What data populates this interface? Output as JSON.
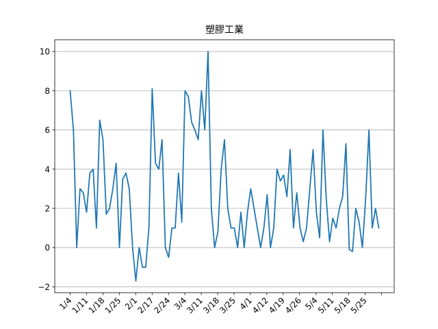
{
  "chart_data": {
    "type": "line",
    "title": "塑膠工業",
    "xlabel": "",
    "ylabel": "",
    "ylim": [
      -2.3,
      10.6
    ],
    "grid": "horizontal",
    "yticks": [
      -2,
      0,
      2,
      4,
      6,
      8,
      10
    ],
    "xticks": [
      "1/4",
      "1/11",
      "1/18",
      "1/25",
      "2/1",
      "2/17",
      "2/24",
      "3/4",
      "3/11",
      "3/18",
      "3/25",
      "4/1",
      "4/12",
      "4/19",
      "4/26",
      "5/4",
      "5/11",
      "5/18",
      "5/25",
      ""
    ],
    "line_color": "#1f77b4",
    "series": [
      {
        "values": [
          8.0,
          6.0,
          0.0,
          3.0,
          2.8,
          1.8,
          3.8,
          4.0,
          1.0,
          6.5,
          5.5,
          1.7,
          2.0,
          3.0,
          4.3,
          0.0,
          3.5,
          3.8,
          3.0,
          0.0,
          -1.7,
          0.0,
          -1.0,
          -1.0,
          1.0,
          8.1,
          4.3,
          4.0,
          5.5,
          0.0,
          -0.5,
          1.0,
          1.0,
          3.8,
          1.3,
          8.0,
          7.7,
          6.4,
          6.0,
          5.5,
          8.0,
          6.0,
          10.0,
          2.0,
          0.0,
          0.8,
          4.0,
          5.5,
          2.0,
          1.0,
          1.0,
          0.0,
          1.8,
          0.0,
          1.8,
          3.0,
          2.0,
          1.0,
          0.0,
          1.0,
          2.7,
          0.0,
          1.0,
          4.0,
          3.4,
          3.7,
          2.6,
          5.0,
          1.0,
          2.8,
          1.0,
          0.3,
          1.0,
          3.0,
          5.0,
          1.8,
          0.5,
          6.0,
          2.5,
          0.3,
          1.5,
          1.0,
          2.0,
          2.6,
          5.3,
          -0.1,
          -0.2,
          2.0,
          1.3,
          0.0,
          2.5,
          6.0,
          1.0,
          2.0,
          1.0
        ]
      }
    ]
  }
}
